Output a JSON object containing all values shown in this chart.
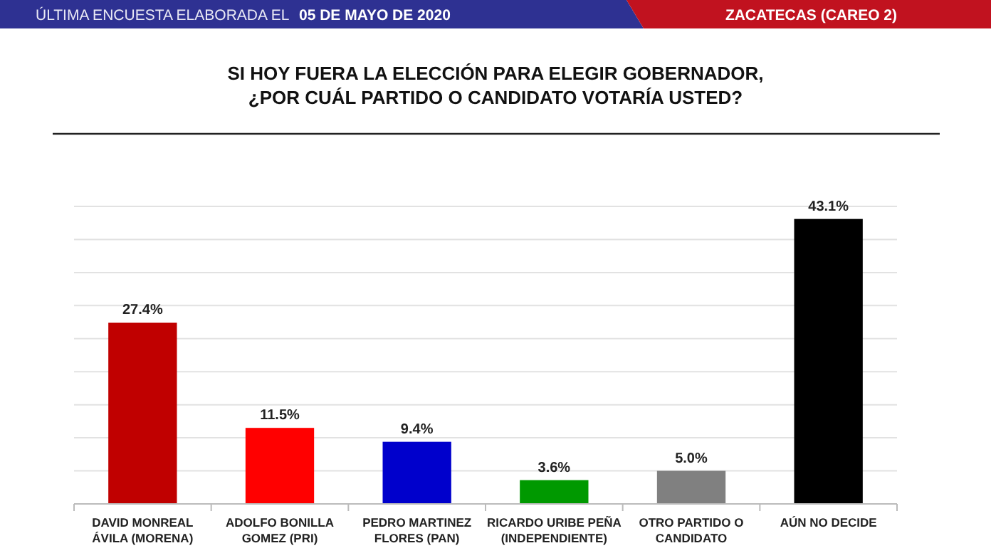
{
  "chart_data": {
    "type": "bar",
    "title": "SI HOY FUERA LA ELECCIÓN PARA ELEGIR GOBERNADOR,\n¿POR CUÁL PARTIDO O CANDIDATO VOTARÍA USTED?",
    "annotations": [
      "ÚLTIMA ENCUESTA ELABORADA EL",
      "05 DE MAYO DE 2020",
      "ZACATECAS (CAREO 2)"
    ],
    "categories": [
      "DAVID MONREAL\nÁVILA (MORENA)",
      "ADOLFO BONILLA\nGOMEZ (PRI)",
      "PEDRO MARTINEZ\nFLORES (PAN)",
      "RICARDO URIBE PEÑA\n(INDEPENDIENTE)",
      "OTRO PARTIDO O\nCANDIDATO",
      "AÚN NO DECIDE"
    ],
    "values": [
      27.4,
      11.5,
      9.4,
      3.6,
      5.0,
      43.1
    ],
    "value_labels": [
      "27.4%",
      "11.5%",
      "9.4%",
      "3.6%",
      "5.0%",
      "43.1%"
    ],
    "colors": [
      "#c00000",
      "#ff0000",
      "#0000cc",
      "#009900",
      "#808080",
      "#000000"
    ],
    "ylim": [
      0,
      45
    ],
    "yticks": [
      {
        "value": 0,
        "label": null
      },
      {
        "value": 5,
        "label": null
      },
      {
        "value": 10,
        "label": null
      },
      {
        "value": 15,
        "label": null
      },
      {
        "value": 20,
        "label": null
      },
      {
        "value": 25,
        "label": null
      },
      {
        "value": 30,
        "label": null
      },
      {
        "value": 35,
        "label": null
      },
      {
        "value": 40,
        "label": null
      },
      {
        "value": 45,
        "label": null
      }
    ],
    "grid": "y",
    "tick_labels": "x"
  }
}
